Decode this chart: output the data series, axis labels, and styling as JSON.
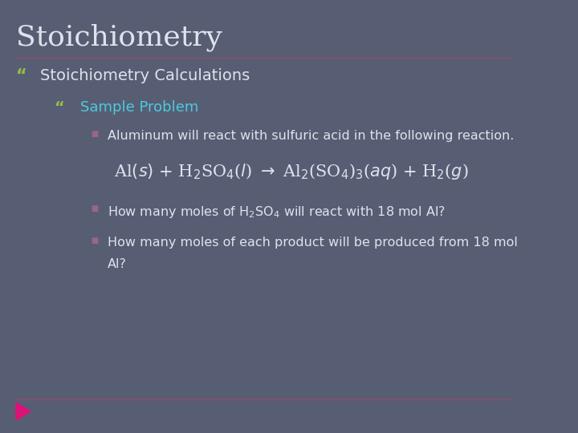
{
  "background_color": "#575e73",
  "title": "Stoichiometry",
  "title_color": "#dde3ed",
  "title_fontsize": 26,
  "bullet1": "Stoichiometry Calculations",
  "bullet1_color": "#dde3ed",
  "bullet1_fontsize": 14,
  "bullet2": "Sample Problem",
  "bullet2_color": "#4ec9e0",
  "bullet2_fontsize": 13,
  "sub_bullet_color": "#dde3ed",
  "sub_bullet_fontsize": 11.5,
  "title_line_color": "#aa4466",
  "bottom_line_color": "#aa4466",
  "arrow_color": "#dd1177",
  "bullet_symbol_color": "#99bb44",
  "sub_bullet_symbol_color": "#996688",
  "equation_color": "#dde3ed",
  "equation_fontsize": 15
}
